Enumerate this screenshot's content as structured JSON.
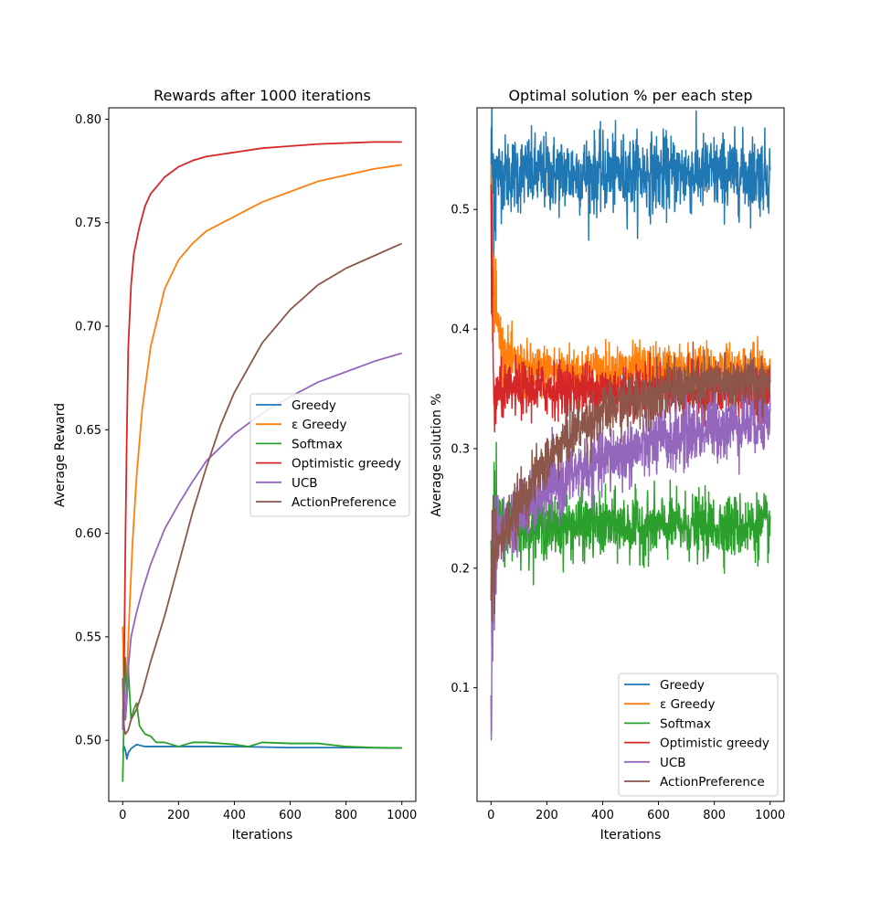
{
  "colors": {
    "Greedy": "#1f77b4",
    "eps": "#ff7f0e",
    "Softmax": "#2ca02c",
    "Optimistic": "#d62728",
    "UCB": "#9467bd",
    "ActionPreference": "#8c564b"
  },
  "chart_data": [
    {
      "type": "line",
      "title": "Rewards after 1000 iterations",
      "xlabel": "Iterations",
      "ylabel": "Average Reward",
      "xlim": [
        -50,
        1050
      ],
      "ylim": [
        0.4705,
        0.8055
      ],
      "xticks": [
        0,
        200,
        400,
        600,
        800,
        1000
      ],
      "yticks": [
        0.5,
        0.55,
        0.6,
        0.65,
        0.7,
        0.75,
        0.8
      ],
      "ytick_labels": [
        "0.50",
        "0.55",
        "0.60",
        "0.65",
        "0.70",
        "0.75",
        "0.80"
      ],
      "grid": false,
      "legend_position": "center-right",
      "series": [
        {
          "name": "Greedy",
          "color_key": "Greedy",
          "points": [
            [
              0,
              0.495
            ],
            [
              5,
              0.497
            ],
            [
              10,
              0.495
            ],
            [
              15,
              0.491
            ],
            [
              20,
              0.494
            ],
            [
              30,
              0.496
            ],
            [
              50,
              0.498
            ],
            [
              80,
              0.497
            ],
            [
              100,
              0.497
            ],
            [
              150,
              0.497
            ],
            [
              200,
              0.497
            ],
            [
              400,
              0.497
            ],
            [
              600,
              0.4965
            ],
            [
              800,
              0.4965
            ],
            [
              1000,
              0.4963
            ]
          ]
        },
        {
          "name": "ε Greedy",
          "color_key": "eps",
          "points": [
            [
              0,
              0.555
            ],
            [
              4,
              0.53
            ],
            [
              8,
              0.51
            ],
            [
              12,
              0.522
            ],
            [
              18,
              0.542
            ],
            [
              25,
              0.565
            ],
            [
              35,
              0.595
            ],
            [
              50,
              0.628
            ],
            [
              70,
              0.66
            ],
            [
              100,
              0.69
            ],
            [
              150,
              0.718
            ],
            [
              200,
              0.732
            ],
            [
              250,
              0.74
            ],
            [
              300,
              0.746
            ],
            [
              400,
              0.753
            ],
            [
              500,
              0.76
            ],
            [
              600,
              0.765
            ],
            [
              700,
              0.77
            ],
            [
              800,
              0.773
            ],
            [
              900,
              0.776
            ],
            [
              1000,
              0.778
            ]
          ]
        },
        {
          "name": "Softmax",
          "color_key": "Softmax",
          "points": [
            [
              0,
              0.48
            ],
            [
              3,
              0.5
            ],
            [
              6,
              0.525
            ],
            [
              9,
              0.54
            ],
            [
              12,
              0.53
            ],
            [
              15,
              0.52
            ],
            [
              20,
              0.535
            ],
            [
              25,
              0.522
            ],
            [
              30,
              0.51
            ],
            [
              40,
              0.515
            ],
            [
              50,
              0.518
            ],
            [
              60,
              0.507
            ],
            [
              80,
              0.503
            ],
            [
              100,
              0.502
            ],
            [
              120,
              0.499
            ],
            [
              150,
              0.499
            ],
            [
              200,
              0.497
            ],
            [
              250,
              0.499
            ],
            [
              300,
              0.499
            ],
            [
              350,
              0.4985
            ],
            [
              400,
              0.498
            ],
            [
              450,
              0.497
            ],
            [
              500,
              0.499
            ],
            [
              600,
              0.4985
            ],
            [
              700,
              0.4985
            ],
            [
              800,
              0.497
            ],
            [
              900,
              0.4965
            ],
            [
              1000,
              0.4963
            ]
          ]
        },
        {
          "name": "Optimistic greedy",
          "color_key": "Optimistic",
          "points": [
            [
              0,
              0.51
            ],
            [
              3,
              0.52
            ],
            [
              6,
              0.55
            ],
            [
              10,
              0.6
            ],
            [
              15,
              0.65
            ],
            [
              20,
              0.69
            ],
            [
              30,
              0.72
            ],
            [
              40,
              0.735
            ],
            [
              60,
              0.748
            ],
            [
              80,
              0.758
            ],
            [
              100,
              0.764
            ],
            [
              150,
              0.772
            ],
            [
              200,
              0.777
            ],
            [
              250,
              0.78
            ],
            [
              300,
              0.782
            ],
            [
              400,
              0.784
            ],
            [
              500,
              0.786
            ],
            [
              600,
              0.787
            ],
            [
              700,
              0.788
            ],
            [
              800,
              0.7885
            ],
            [
              900,
              0.789
            ],
            [
              1000,
              0.789
            ]
          ]
        },
        {
          "name": "UCB",
          "color_key": "UCB",
          "points": [
            [
              0,
              0.505
            ],
            [
              3,
              0.53
            ],
            [
              6,
              0.52
            ],
            [
              10,
              0.51
            ],
            [
              15,
              0.52
            ],
            [
              20,
              0.535
            ],
            [
              30,
              0.55
            ],
            [
              50,
              0.562
            ],
            [
              70,
              0.572
            ],
            [
              100,
              0.585
            ],
            [
              150,
              0.602
            ],
            [
              200,
              0.614
            ],
            [
              250,
              0.625
            ],
            [
              300,
              0.635
            ],
            [
              400,
              0.648
            ],
            [
              500,
              0.658
            ],
            [
              600,
              0.666
            ],
            [
              700,
              0.673
            ],
            [
              800,
              0.678
            ],
            [
              900,
              0.683
            ],
            [
              1000,
              0.687
            ]
          ]
        },
        {
          "name": "ActionPreference",
          "color_key": "ActionPreference",
          "points": [
            [
              0,
              0.53
            ],
            [
              3,
              0.51
            ],
            [
              6,
              0.505
            ],
            [
              10,
              0.503
            ],
            [
              20,
              0.505
            ],
            [
              30,
              0.51
            ],
            [
              50,
              0.515
            ],
            [
              70,
              0.523
            ],
            [
              100,
              0.538
            ],
            [
              150,
              0.56
            ],
            [
              200,
              0.585
            ],
            [
              250,
              0.61
            ],
            [
              300,
              0.632
            ],
            [
              350,
              0.652
            ],
            [
              400,
              0.668
            ],
            [
              500,
              0.692
            ],
            [
              600,
              0.708
            ],
            [
              700,
              0.72
            ],
            [
              800,
              0.728
            ],
            [
              900,
              0.734
            ],
            [
              1000,
              0.74
            ]
          ]
        }
      ]
    },
    {
      "type": "line",
      "title": "Optimal solution % per each step",
      "xlabel": "Iterations",
      "ylabel": "Average solution %",
      "xlim": [
        -50,
        1050
      ],
      "ylim": [
        0.005,
        0.585
      ],
      "xticks": [
        0,
        200,
        400,
        600,
        800,
        1000
      ],
      "yticks": [
        0.1,
        0.2,
        0.3,
        0.4,
        0.5
      ],
      "ytick_labels": [
        "0.1",
        "0.2",
        "0.3",
        "0.4",
        "0.5"
      ],
      "grid": false,
      "legend_position": "lower-right",
      "series": [
        {
          "name": "Greedy",
          "color_key": "Greedy",
          "points": [
            [
              0,
              0.53
            ],
            [
              1000,
              0.53
            ]
          ],
          "noise": 0.016
        },
        {
          "name": "ε Greedy",
          "color_key": "eps",
          "points": [
            [
              0,
              0.5
            ],
            [
              10,
              0.44
            ],
            [
              20,
              0.41
            ],
            [
              40,
              0.385
            ],
            [
              80,
              0.37
            ],
            [
              150,
              0.365
            ],
            [
              1000,
              0.365
            ]
          ],
          "noise": 0.011
        },
        {
          "name": "Softmax",
          "color_key": "Softmax",
          "points": [
            [
              0,
              0.24
            ],
            [
              10,
              0.23
            ],
            [
              30,
              0.235
            ],
            [
              1000,
              0.235
            ]
          ],
          "noise": 0.013
        },
        {
          "name": "Optimistic greedy",
          "color_key": "Optimistic",
          "points": [
            [
              0,
              0.49
            ],
            [
              5,
              0.4
            ],
            [
              10,
              0.34
            ],
            [
              20,
              0.345
            ],
            [
              100,
              0.35
            ],
            [
              1000,
              0.348
            ]
          ],
          "noise": 0.011
        },
        {
          "name": "UCB",
          "color_key": "UCB",
          "points": [
            [
              0,
              0.05
            ],
            [
              5,
              0.18
            ],
            [
              10,
              0.2
            ],
            [
              20,
              0.22
            ],
            [
              50,
              0.235
            ],
            [
              100,
              0.245
            ],
            [
              200,
              0.265
            ],
            [
              300,
              0.28
            ],
            [
              400,
              0.29
            ],
            [
              500,
              0.298
            ],
            [
              600,
              0.305
            ],
            [
              700,
              0.312
            ],
            [
              800,
              0.318
            ],
            [
              900,
              0.322
            ],
            [
              1000,
              0.325
            ]
          ],
          "noise": 0.014
        },
        {
          "name": "ActionPreference",
          "color_key": "ActionPreference",
          "points": [
            [
              0,
              0.21
            ],
            [
              10,
              0.21
            ],
            [
              30,
              0.22
            ],
            [
              60,
              0.235
            ],
            [
              100,
              0.255
            ],
            [
              200,
              0.29
            ],
            [
              300,
              0.315
            ],
            [
              400,
              0.33
            ],
            [
              500,
              0.34
            ],
            [
              600,
              0.347
            ],
            [
              700,
              0.352
            ],
            [
              800,
              0.355
            ],
            [
              1000,
              0.357
            ]
          ],
          "noise": 0.011
        }
      ]
    }
  ]
}
